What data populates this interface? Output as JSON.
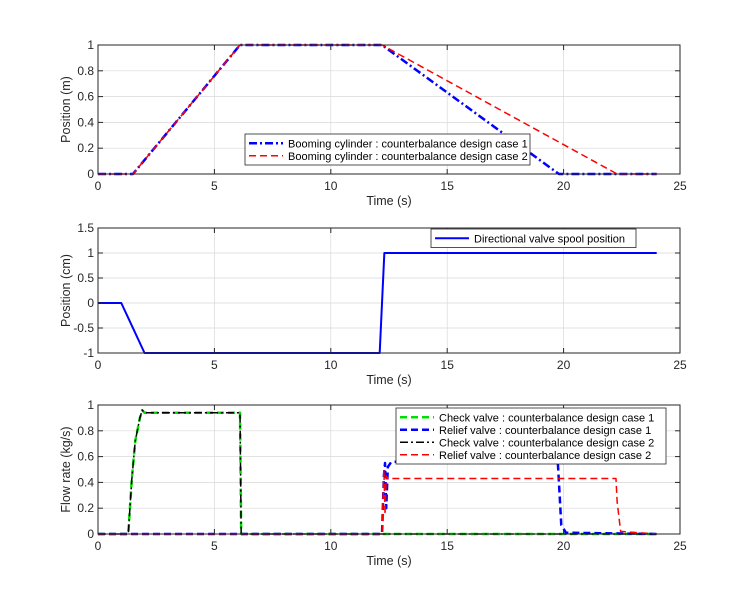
{
  "chart_data": [
    {
      "type": "line",
      "xlabel": "Time (s)",
      "ylabel": "Position (m)",
      "xlim": [
        0,
        25
      ],
      "ylim": [
        0,
        1
      ],
      "xticks": [
        0,
        5,
        10,
        15,
        20,
        25
      ],
      "yticks": [
        0,
        0.2,
        0.4,
        0.6,
        0.8,
        1
      ],
      "xtick_labels": [
        "0",
        "5",
        "10",
        "15",
        "20",
        "25"
      ],
      "ytick_labels": [
        "0",
        "0.2",
        "0.4",
        "0.6",
        "0.8",
        "1"
      ],
      "grid": true,
      "legend_position": "bottom-right",
      "series": [
        {
          "name": "Booming cylinder : counterbalance design case 1",
          "color": "#0000ff",
          "style": "dashdot",
          "width": 2.5,
          "x": [
            0,
            1.5,
            6.1,
            12.2,
            19.8,
            24
          ],
          "y": [
            0,
            0,
            1,
            1,
            0,
            0
          ]
        },
        {
          "name": "Booming cylinder : counterbalance design case 2",
          "color": "#ff0000",
          "style": "dashed",
          "width": 1.5,
          "x": [
            0,
            1.5,
            6.1,
            12.2,
            22.3,
            24
          ],
          "y": [
            0,
            0,
            1,
            1,
            0,
            0
          ]
        }
      ]
    },
    {
      "type": "line",
      "xlabel": "Time (s)",
      "ylabel": "Position (cm)",
      "xlim": [
        0,
        25
      ],
      "ylim": [
        -1,
        1.5
      ],
      "xticks": [
        0,
        5,
        10,
        15,
        20,
        25
      ],
      "yticks": [
        -1,
        -0.5,
        0,
        0.5,
        1,
        1.5
      ],
      "xtick_labels": [
        "0",
        "5",
        "10",
        "15",
        "20",
        "25"
      ],
      "ytick_labels": [
        "-1",
        "-0.5",
        "0",
        "0.5",
        "1",
        "1.5"
      ],
      "grid": true,
      "legend_position": "top-right",
      "series": [
        {
          "name": "Directional valve spool position",
          "color": "#0000ff",
          "style": "solid",
          "width": 2,
          "x": [
            0,
            1.0,
            2.0,
            12.1,
            12.3,
            24
          ],
          "y": [
            0,
            0,
            -1,
            -1,
            1,
            1
          ]
        }
      ]
    },
    {
      "type": "line",
      "xlabel": "Time (s)",
      "ylabel": "Flow rate (kg/s)",
      "xlim": [
        0,
        25
      ],
      "ylim": [
        0,
        1
      ],
      "xticks": [
        0,
        5,
        10,
        15,
        20,
        25
      ],
      "yticks": [
        0,
        0.2,
        0.4,
        0.6,
        0.8,
        1
      ],
      "xtick_labels": [
        "0",
        "5",
        "10",
        "15",
        "20",
        "25"
      ],
      "ytick_labels": [
        "0",
        "0.2",
        "0.4",
        "0.6",
        "0.8",
        "1"
      ],
      "grid": true,
      "legend_position": "top-right",
      "series": [
        {
          "name": "Check valve : counterbalance design case 1",
          "color": "#00e000",
          "style": "dashed",
          "width": 2.5,
          "x": [
            0,
            1.3,
            1.45,
            1.6,
            1.8,
            1.9,
            2.0,
            2.2,
            6.1,
            6.15,
            24
          ],
          "y": [
            0,
            0,
            0.42,
            0.72,
            0.9,
            0.96,
            0.94,
            0.94,
            0.94,
            0,
            0
          ]
        },
        {
          "name": "Relief valve : counterbalance design case 1",
          "color": "#0000ff",
          "style": "dashed",
          "width": 2.5,
          "x": [
            0,
            12.2,
            12.28,
            12.33,
            12.38,
            12.45,
            12.6,
            13.0,
            19.75,
            19.8,
            19.9,
            20.1,
            24
          ],
          "y": [
            0,
            0,
            0.45,
            0.55,
            0.2,
            0.52,
            0.56,
            0.56,
            0.56,
            0.4,
            0.07,
            0.01,
            0
          ]
        },
        {
          "name": "Check valve : counterbalance design case 2",
          "color": "#000000",
          "style": "dashdot",
          "width": 1.5,
          "x": [
            0,
            1.3,
            1.45,
            1.6,
            1.8,
            1.9,
            2.0,
            2.2,
            6.1,
            6.15,
            24
          ],
          "y": [
            0,
            0,
            0.42,
            0.72,
            0.9,
            0.96,
            0.94,
            0.94,
            0.94,
            0,
            0
          ]
        },
        {
          "name": "Relief valve : counterbalance design case 2",
          "color": "#ff0000",
          "style": "dashed",
          "width": 1.5,
          "x": [
            0,
            12.2,
            12.28,
            12.33,
            12.38,
            12.45,
            12.6,
            22.25,
            22.3,
            22.45,
            24
          ],
          "y": [
            0,
            0,
            0.5,
            0.15,
            0.45,
            0.43,
            0.43,
            0.43,
            0.25,
            0.02,
            0
          ]
        }
      ]
    }
  ]
}
